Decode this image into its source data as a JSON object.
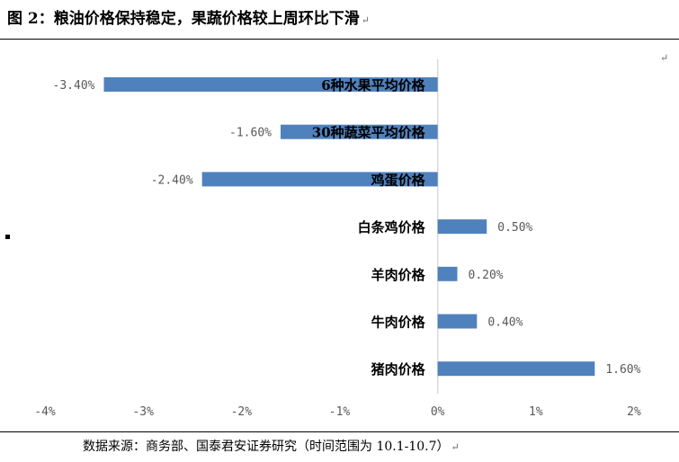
{
  "title": "图 2：粮油价格保持稳定，果蔬价格较上周环比下滑",
  "return_mark": "↵",
  "source": "数据来源：商务部、国泰君安证券研究（时间范围为 10.1-10.7）",
  "colors": {
    "bar": "#4F81BD",
    "axis": "#D9D9D9",
    "tick_text": "#595959"
  },
  "chart_data": {
    "type": "bar",
    "orientation": "horizontal",
    "categories": [
      "6种水果平均价格",
      "30种蔬菜平均价格",
      "鸡蛋价格",
      "白条鸡价格",
      "羊肉价格",
      "牛肉价格",
      "猪肉价格"
    ],
    "values": [
      -3.4,
      -1.6,
      -2.4,
      0.5,
      0.2,
      0.4,
      1.6
    ],
    "value_labels": [
      "-3.40%",
      "-1.60%",
      "-2.40%",
      "0.50%",
      "0.20%",
      "0.40%",
      "1.60%"
    ],
    "x_ticks": [
      -4,
      -3,
      -2,
      -1,
      0,
      1,
      2
    ],
    "x_tick_labels": [
      "-4%",
      "-3%",
      "-2%",
      "-1%",
      "0%",
      "1%",
      "2%"
    ],
    "xlim": [
      -4,
      2
    ],
    "grid": false,
    "legend": "none"
  }
}
